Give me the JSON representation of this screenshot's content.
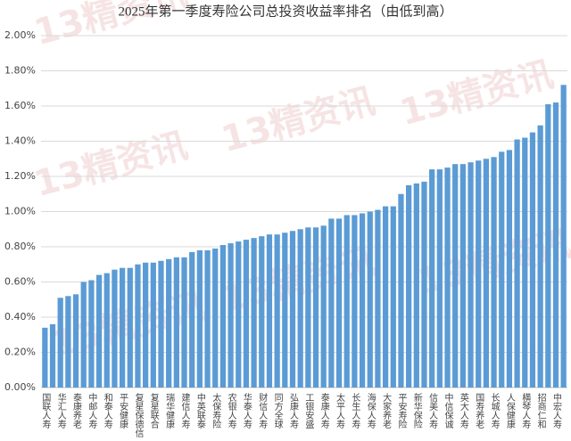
{
  "chart_data": {
    "type": "bar",
    "title": "2025年第一季度寿险公司总投资收益率排名（由低到高）",
    "watermark": "13精资讯",
    "color": "#5b9bd5",
    "grid": true,
    "ylim": [
      0,
      2
    ],
    "yticks": [
      {
        "value": 0,
        "label": "0.00%"
      },
      {
        "value": 0.2,
        "label": "0.20%"
      },
      {
        "value": 0.4,
        "label": "0.40%"
      },
      {
        "value": 0.6,
        "label": "0.60%"
      },
      {
        "value": 0.8,
        "label": "0.80%"
      },
      {
        "value": 1.0,
        "label": "1.00%"
      },
      {
        "value": 1.2,
        "label": "1.20%"
      },
      {
        "value": 1.4,
        "label": "1.40%"
      },
      {
        "value": 1.6,
        "label": "1.60%"
      },
      {
        "value": 1.8,
        "label": "1.80%"
      },
      {
        "value": 2.0,
        "label": "2.00%"
      }
    ],
    "categories": [
      "国联人寿",
      null,
      "华汇人寿",
      null,
      "泰康养老",
      null,
      "中邮人寿",
      null,
      "和泰人寿",
      null,
      "平安健康",
      null,
      "复星保德信",
      null,
      "复星联合",
      null,
      "瑞华健康",
      null,
      "建信人寿",
      null,
      "中英联泰",
      null,
      "太保寿险",
      null,
      "农银人寿",
      null,
      "华泰人寿",
      null,
      "财信人寿",
      null,
      "同方全球",
      null,
      "弘康人寿",
      null,
      "工银安盛",
      null,
      "泰康人寿",
      null,
      "太平人寿",
      null,
      "长生人寿",
      null,
      "海保人寿",
      null,
      "大家养老",
      null,
      "平安寿险",
      null,
      "新华保险",
      null,
      "信美人寿",
      null,
      "中信保诚",
      null,
      "英大人寿",
      null,
      "国寿养老",
      null,
      "长城人寿",
      null,
      "人保健康",
      null,
      "横琴人寿",
      null,
      "招商仁和",
      null,
      "中宏人寿",
      null
    ],
    "values": [
      0.34,
      0.36,
      0.51,
      0.52,
      0.53,
      0.6,
      0.61,
      0.64,
      0.65,
      0.67,
      0.68,
      0.68,
      0.7,
      0.71,
      0.71,
      0.72,
      0.73,
      0.74,
      0.74,
      0.77,
      0.78,
      0.78,
      0.79,
      0.81,
      0.82,
      0.83,
      0.84,
      0.85,
      0.86,
      0.87,
      0.87,
      0.88,
      0.89,
      0.9,
      0.91,
      0.91,
      0.92,
      0.96,
      0.96,
      0.98,
      0.98,
      0.99,
      1.0,
      1.01,
      1.03,
      1.03,
      1.1,
      1.15,
      1.16,
      1.17,
      1.24,
      1.24,
      1.25,
      1.27,
      1.27,
      1.28,
      1.29,
      1.3,
      1.31,
      1.34,
      1.35,
      1.41,
      1.42,
      1.45,
      1.49,
      1.61,
      1.62,
      1.72
    ]
  }
}
